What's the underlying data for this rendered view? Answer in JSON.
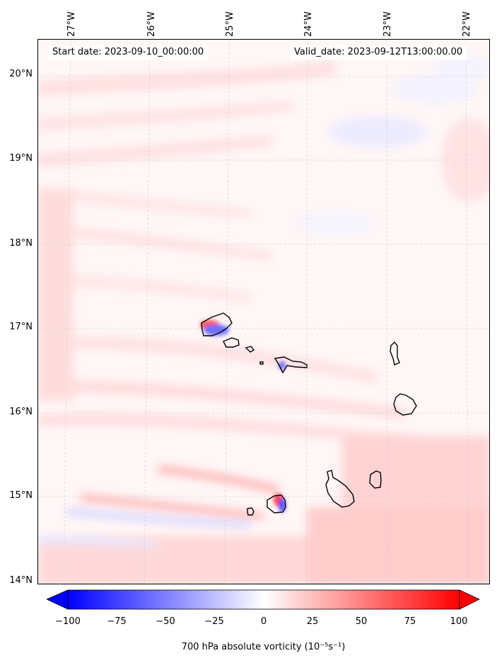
{
  "header": {
    "start_date": "Start date: 2023-09-10_00:00:00",
    "valid_date": "Valid_date: 2023-09-12T13:00:00.00"
  },
  "map": {
    "longitude_labels": [
      "27°W",
      "26°W",
      "25°W",
      "24°W",
      "23°W",
      "22°W"
    ],
    "latitude_labels": [
      "20°N",
      "19°N",
      "18°N",
      "17°N",
      "16°N",
      "15°N",
      "14°N"
    ],
    "extent": {
      "lon_min": -27.4,
      "lon_max": -21.9,
      "lat_min": 13.95,
      "lat_max": 20.4
    },
    "field": "700 hPa absolute vorticity",
    "colormap": "bwr",
    "colors": {
      "negative": "#0000ff",
      "zero": "#ffffff",
      "positive": "#ff0000",
      "coastline": "#000000",
      "grid": "#cccccc"
    }
  },
  "colorbar": {
    "ticks": [
      "−100",
      "−75",
      "−50",
      "−25",
      "0",
      "25",
      "50",
      "75",
      "100"
    ],
    "range": [
      -100,
      100
    ],
    "extend": "both",
    "label": "700 hPa absolute vorticity (10⁻⁵s⁻¹)"
  }
}
